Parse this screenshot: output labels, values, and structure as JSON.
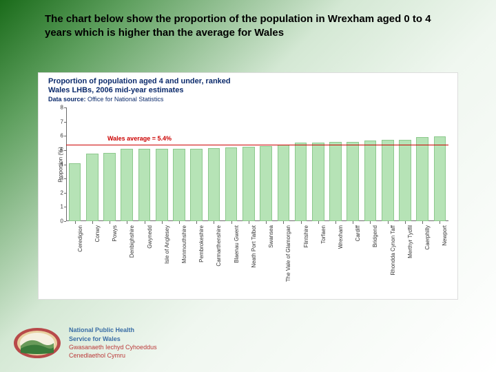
{
  "slide": {
    "title_html": "The chart below show the proportion of the population in Wrexham aged 0 to 4 years which is higher than the average for Wales"
  },
  "chart": {
    "type": "bar",
    "title_line1": "Proportion of population aged 4 and under, ranked",
    "title_line2": "Wales LHBs, 2006 mid-year estimates",
    "subtitle_label": "Data source:",
    "subtitle_value": "Office for National Statistics",
    "y_label": "Proportion (%)",
    "ylim": [
      0,
      8
    ],
    "ytick_step": 1,
    "avg_value": 5.4,
    "avg_label": "Wales average = 5.4%",
    "bar_fill": "#b6e3b6",
    "bar_border": "#8cc88c",
    "avg_color": "#cc0000",
    "axis_color": "#6a6a6a",
    "background_color": "#ffffff",
    "categories": [
      "Ceredigion",
      "Conwy",
      "Powys",
      "Denbighshire",
      "Gwynedd",
      "Isle of Anglesey",
      "Monmouthshire",
      "Pembrokeshire",
      "Carmarthenshire",
      "Blaenau Gwent",
      "Neath Port Talbot",
      "Swansea",
      "The Vale of Glamorgan",
      "Flintshire",
      "Torfaen",
      "Wrexham",
      "Cardiff",
      "Bridgend",
      "Rhondda Cynon Taff",
      "Merthyr Tydfil",
      "Caerphilly",
      "Newport"
    ],
    "values": [
      4.05,
      4.75,
      4.8,
      5.1,
      5.1,
      5.1,
      5.1,
      5.1,
      5.15,
      5.2,
      5.25,
      5.3,
      5.4,
      5.55,
      5.55,
      5.6,
      5.6,
      5.65,
      5.7,
      5.7,
      5.9,
      5.95
    ],
    "bar_width_ratio": 0.7,
    "label_fontsize": 8,
    "title_fontsize": 11,
    "title_color": "#0b2a6b"
  },
  "footer": {
    "org_en_line1": "National Public Health",
    "org_en_line2": "Service for Wales",
    "org_cy_line1": "Gwasanaeth Iechyd Cyhoeddus",
    "org_cy_line2": "Cenedlaethol Cymru",
    "logo_colors": {
      "ring_outer": "#b84a4a",
      "ring_inner": "#e8d0a0",
      "hill_back": "#6a9a5a",
      "hill_front": "#3a7a3a",
      "sky": "#f5f0e0"
    }
  }
}
